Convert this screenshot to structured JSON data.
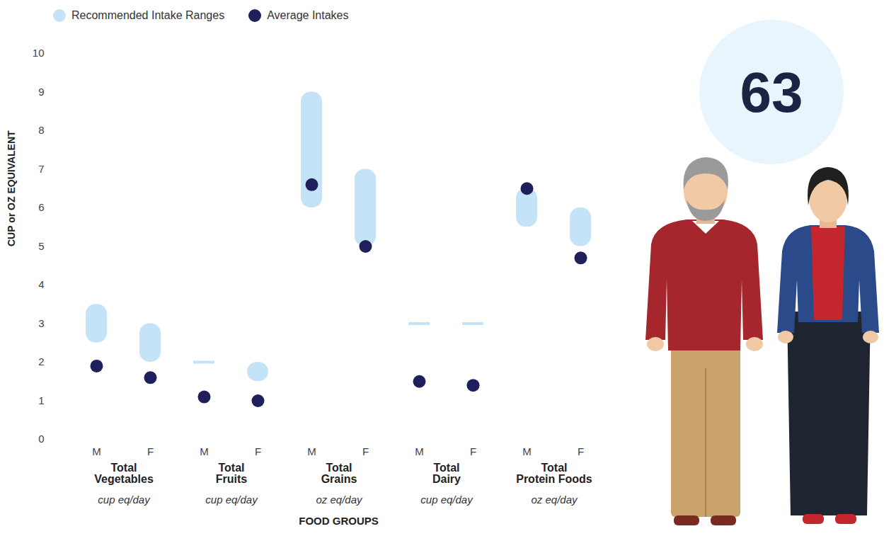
{
  "chart_data": {
    "type": "range_dot",
    "legend": "top-left",
    "ylabel": "CUP or OZ EQUIVALENT",
    "xlabel": "FOOD GROUPS",
    "annotation": "63",
    "categories": [
      "M",
      "F",
      "M",
      "F",
      "M",
      "F",
      "M",
      "F",
      "M",
      "F"
    ],
    "groups": [
      {
        "name": "Total Vegetables",
        "unit": "cup eq/day"
      },
      {
        "name": "Total Fruits",
        "unit": "cup eq/day"
      },
      {
        "name": "Total Grains",
        "unit": "oz eq/day"
      },
      {
        "name": "Total Dairy",
        "unit": "cup eq/day"
      },
      {
        "name": "Total Protein Foods",
        "unit": "oz eq/day"
      }
    ],
    "series": [
      {
        "name": "Recommended Intake Ranges",
        "type": "range",
        "color": "#c4e3f7",
        "low": [
          2.5,
          2,
          2,
          1.5,
          6,
          5,
          3,
          3,
          5.5,
          5
        ],
        "high": [
          3.5,
          3,
          2,
          2,
          9,
          7,
          3,
          3,
          6.5,
          6
        ]
      },
      {
        "name": "Average Intakes",
        "type": "dot",
        "color": "#1f1f5c",
        "values": [
          1.9,
          1.6,
          1.1,
          1.0,
          6.6,
          5.0,
          1.5,
          1.4,
          6.5,
          4.7
        ]
      }
    ],
    "ylim": [
      0,
      10
    ],
    "yticks": [
      0,
      1,
      2,
      3,
      4,
      5,
      6,
      7,
      8,
      9,
      10
    ]
  }
}
